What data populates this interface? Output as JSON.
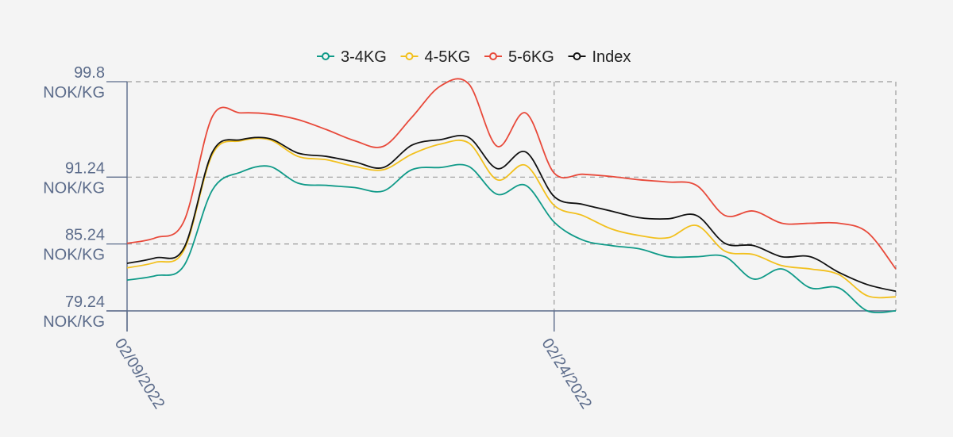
{
  "chart_data": {
    "type": "line",
    "title": "",
    "xlabel": "",
    "ylabel": "",
    "x_start": "02/09/2022",
    "x_end": "03/08/2022",
    "x_ticks": [
      "02/09/2022",
      "02/24/2022"
    ],
    "y_ticks": [
      {
        "value": 99.8,
        "label": "99.8",
        "unit": "NOK/KG"
      },
      {
        "value": 91.24,
        "label": "91.24",
        "unit": "NOK/KG"
      },
      {
        "value": 85.24,
        "label": "85.24",
        "unit": "NOK/KG"
      },
      {
        "value": 79.24,
        "label": "79.24",
        "unit": "NOK/KG"
      }
    ],
    "ylim": [
      79.24,
      99.8
    ],
    "grid": true,
    "legend_position": "top-center",
    "x": [
      "02/09/2022",
      "02/10/2022",
      "02/11/2022",
      "02/12/2022",
      "02/13/2022",
      "02/14/2022",
      "02/15/2022",
      "02/16/2022",
      "02/17/2022",
      "02/18/2022",
      "02/19/2022",
      "02/20/2022",
      "02/21/2022",
      "02/22/2022",
      "02/23/2022",
      "02/24/2022",
      "02/25/2022",
      "02/26/2022",
      "02/27/2022",
      "02/28/2022",
      "03/01/2022",
      "03/02/2022",
      "03/03/2022",
      "03/04/2022",
      "03/05/2022",
      "03/06/2022",
      "03/07/2022",
      "03/08/2022"
    ],
    "series": [
      {
        "name": "3-4KG",
        "color": "#0f9a88",
        "values": [
          82.0,
          82.4,
          83.3,
          90.1,
          91.7,
          92.2,
          90.7,
          90.5,
          90.3,
          90.0,
          91.9,
          92.1,
          92.2,
          89.7,
          90.5,
          87.2,
          85.6,
          85.1,
          84.8,
          84.1,
          84.1,
          84.1,
          82.1,
          83.0,
          81.3,
          81.3,
          79.24,
          79.24
        ]
      },
      {
        "name": "4-5KG",
        "color": "#f2c01d",
        "values": [
          83.1,
          83.6,
          84.7,
          93.3,
          94.5,
          94.6,
          93.1,
          92.8,
          92.2,
          91.9,
          93.3,
          94.2,
          94.3,
          91.0,
          92.3,
          88.7,
          87.8,
          86.6,
          86.0,
          85.8,
          86.9,
          84.6,
          84.3,
          83.3,
          83.0,
          82.5,
          80.6,
          80.5
        ]
      },
      {
        "name": "5-6KG",
        "color": "#e8493a",
        "values": [
          85.3,
          85.8,
          87.3,
          96.7,
          97.0,
          96.9,
          96.4,
          95.5,
          94.5,
          94.0,
          96.6,
          99.4,
          99.6,
          94.0,
          97.0,
          91.6,
          91.5,
          91.3,
          91.0,
          90.8,
          90.5,
          87.8,
          88.2,
          87.1,
          87.1,
          87.1,
          86.3,
          83.0
        ]
      },
      {
        "name": "Index",
        "color": "#111111",
        "values": [
          83.5,
          84.0,
          84.9,
          93.5,
          94.6,
          94.7,
          93.4,
          93.1,
          92.6,
          92.1,
          94.1,
          94.6,
          94.8,
          92.0,
          93.5,
          89.5,
          88.8,
          88.2,
          87.6,
          87.5,
          87.8,
          85.3,
          85.1,
          84.1,
          84.1,
          82.7,
          81.6,
          81.0
        ]
      }
    ]
  }
}
